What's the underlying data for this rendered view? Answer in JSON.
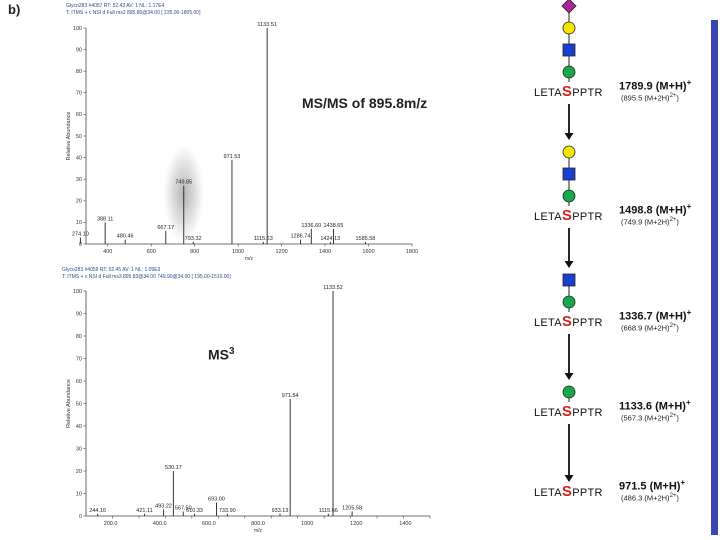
{
  "panel_label": "b)",
  "chart_data": [
    {
      "type": "bar",
      "header_line1": "Glyco283 #4057  RT: 52.43  AV: 1  NL: 1.17E4",
      "header_line2": "T: ITMS + c NSI d Full ms2 895.80@34.00 [ 235.00-1805.00]",
      "annotation": "MS/MS of 895.8m/z",
      "xlabel": "m/z",
      "ylabel": "Relative Abundance",
      "xlim": [
        300,
        1800
      ],
      "ylim": [
        0,
        100
      ],
      "x_ticks": [
        400,
        600,
        800,
        1000,
        1200,
        1400,
        1600,
        1800
      ],
      "y_ticks": [
        0,
        10,
        20,
        30,
        40,
        50,
        60,
        70,
        80,
        90,
        100
      ],
      "highlight_mz": 749.85,
      "peaks": [
        {
          "mz": 1133.51,
          "rel": 100,
          "label": "1133.51"
        },
        {
          "mz": 971.53,
          "rel": 39,
          "label": "971.53"
        },
        {
          "mz": 749.85,
          "rel": 27,
          "label": "749.85"
        },
        {
          "mz": 388.11,
          "rel": 10,
          "label": "388.11"
        },
        {
          "mz": 274.1,
          "rel": 3,
          "label": "274.10"
        },
        {
          "mz": 480.46,
          "rel": 2,
          "label": "480.46"
        },
        {
          "mz": 667.17,
          "rel": 6,
          "label": "667.17"
        },
        {
          "mz": 793.32,
          "rel": 1,
          "label": "793.32"
        },
        {
          "mz": 1115.63,
          "rel": 1,
          "label": "1115.63"
        },
        {
          "mz": 1336.6,
          "rel": 7,
          "label": "1336.60"
        },
        {
          "mz": 1438.65,
          "rel": 7,
          "label": "1438.65"
        },
        {
          "mz": 1286.74,
          "rel": 2,
          "label": "1286.74"
        },
        {
          "mz": 1424.13,
          "rel": 1,
          "label": "1424.13"
        },
        {
          "mz": 1585.58,
          "rel": 1,
          "label": "1585.58"
        }
      ]
    },
    {
      "type": "bar",
      "header_line1": "Glyco283 #4059  RT: 52.45  AV: 1  NL: 1.09E3",
      "header_line2": "T: ITMS + c NSI d Full ms3 895.83@34.00 749.90@34.00 [ 195.00-1510.00]",
      "annotation": "MS",
      "annotation_sup": "3",
      "xlabel": "m/z",
      "ylabel": "Relative Abundance",
      "xlim": [
        200,
        1500
      ],
      "ylim": [
        0,
        100
      ],
      "x_ticks": [
        300,
        400,
        500,
        600,
        700,
        800,
        900,
        1000,
        1100,
        1200,
        1300,
        1400,
        1500
      ],
      "x_tick_labels": [
        "200.0",
        "400.0",
        "600.0",
        "800.0",
        "1000",
        "1200",
        "1400"
      ],
      "y_ticks": [
        0,
        10,
        20,
        30,
        40,
        50,
        60,
        70,
        80,
        90,
        100
      ],
      "peaks": [
        {
          "mz": 1133.52,
          "rel": 100,
          "label": "1133.52"
        },
        {
          "mz": 971.54,
          "rel": 52,
          "label": "971.54"
        },
        {
          "mz": 530.17,
          "rel": 20,
          "label": "530.17"
        },
        {
          "mz": 244.16,
          "rel": 1,
          "label": "244.16"
        },
        {
          "mz": 421.11,
          "rel": 1,
          "label": "421.11"
        },
        {
          "mz": 493.22,
          "rel": 3,
          "label": "493.22"
        },
        {
          "mz": 567.5,
          "rel": 2,
          "label": "567.50"
        },
        {
          "mz": 610.33,
          "rel": 1,
          "label": "610.33"
        },
        {
          "mz": 693.0,
          "rel": 6,
          "label": "693.00"
        },
        {
          "mz": 733.9,
          "rel": 1,
          "label": "733.90"
        },
        {
          "mz": 933.13,
          "rel": 1,
          "label": "933.13"
        },
        {
          "mz": 1115.66,
          "rel": 1,
          "label": "1115.66"
        },
        {
          "mz": 1205.58,
          "rel": 2,
          "label": "1205.58"
        }
      ]
    }
  ],
  "scheme": [
    {
      "glycans": [
        "diamond",
        "circle-yellow",
        "square",
        "circle-green"
      ],
      "peptide_pre": "LETA",
      "peptide_s": "S",
      "peptide_post": "PPTR",
      "mass": "1789.9 (M+H)",
      "mass_sup": "+",
      "sub": "(895.5 (M+2H)",
      "sub_sup": "2+",
      "sub_end": ")"
    },
    {
      "glycans": [
        "circle-yellow",
        "square",
        "circle-green"
      ],
      "peptide_pre": "LETA",
      "peptide_s": "S",
      "peptide_post": "PPTR",
      "mass": "1498.8 (M+H)",
      "mass_sup": "+",
      "sub": "(749.9 (M+2H)",
      "sub_sup": "2+",
      "sub_end": ")"
    },
    {
      "glycans": [
        "square",
        "circle-green"
      ],
      "peptide_pre": "LETA",
      "peptide_s": "S",
      "peptide_post": "PPTR",
      "mass": "1336.7 (M+H)",
      "mass_sup": "+",
      "sub": "(668.9 (M+2H)",
      "sub_sup": "2+",
      "sub_end": ")"
    },
    {
      "glycans": [
        "circle-green"
      ],
      "peptide_pre": "LETA",
      "peptide_s": "S",
      "peptide_post": "PPTR",
      "mass": "1133.6 (M+H)",
      "mass_sup": "+",
      "sub": "(567.3 (M+2H)",
      "sub_sup": "2+",
      "sub_end": ")"
    },
    {
      "glycans": [],
      "peptide_pre": "LETA",
      "peptide_s": "S",
      "peptide_post": "PPTR",
      "mass": "971.5 (M+H)",
      "mass_sup": "+",
      "sub": "(486.3 (M+2H)",
      "sub_sup": "2+",
      "sub_end": ")"
    }
  ],
  "colors": {
    "diamond": "#a8289a",
    "circle-yellow": "#f5e600",
    "square": "#1a3fd0",
    "circle-green": "#16a84a",
    "side_bar": "#3a46b0",
    "peptide_s": "#d42020"
  }
}
